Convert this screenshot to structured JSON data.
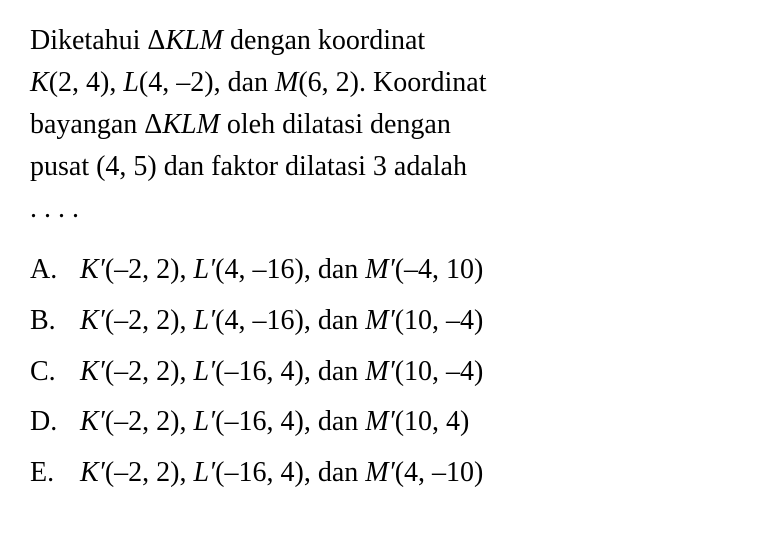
{
  "question": {
    "line1_pre": "Diketahui ",
    "line1_delta": "Δ",
    "line1_klm": "KLM",
    "line1_post": " dengan koordinat",
    "line2_k": "K",
    "line2_kcoord": "(2, 4), ",
    "line2_l": "L",
    "line2_lcoord": "(4, –2), dan ",
    "line2_m": "M",
    "line2_mcoord": "(6, 2). Koordinat",
    "line3_pre": "bayangan ",
    "line3_delta": "Δ",
    "line3_klm": "KLM",
    "line3_post": " oleh dilatasi dengan",
    "line4": "pusat (4, 5) dan faktor dilatasi 3 adalah",
    "line5": ". . . ."
  },
  "options": {
    "a": {
      "label": "A.",
      "k": "K′",
      "kcoord": "(–2, 2), ",
      "l": "L′",
      "lcoord": "(4, –16), dan ",
      "m": "M′",
      "mcoord": "(–4, 10)"
    },
    "b": {
      "label": "B.",
      "k": "K′",
      "kcoord": "(–2, 2), ",
      "l": "L′",
      "lcoord": "(4, –16), dan ",
      "m": "M′",
      "mcoord": "(10, –4)"
    },
    "c": {
      "label": "C.",
      "k": "K′",
      "kcoord": "(–2, 2), ",
      "l": "L′",
      "lcoord": "(–16, 4), dan ",
      "m": "M′",
      "mcoord": "(10, –4)"
    },
    "d": {
      "label": "D.",
      "k": "K′",
      "kcoord": "(–2, 2), ",
      "l": "L′",
      "lcoord": "(–16, 4), dan ",
      "m": "M′",
      "mcoord": "(10, 4)"
    },
    "e": {
      "label": "E.",
      "k": "K′",
      "kcoord": "(–2, 2), ",
      "l": "L′",
      "lcoord": "(–16, 4), dan ",
      "m": "M′",
      "mcoord": "(4, –10)"
    }
  },
  "styling": {
    "background_color": "#ffffff",
    "text_color": "#000000",
    "font_family": "Times New Roman",
    "font_size": 28,
    "line_height": 1.5
  }
}
